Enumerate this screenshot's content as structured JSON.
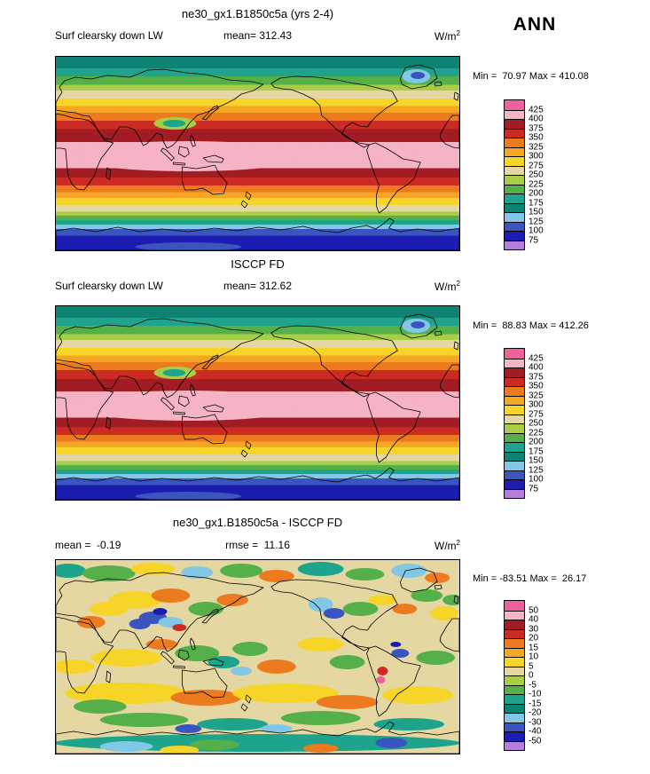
{
  "season_label": "ANN",
  "panels": [
    {
      "title": "ne30_gx1.B1850c5a (yrs 2-4)",
      "left_label": "Surf clearsky down LW",
      "center_label": "mean= 312.43",
      "units": "W/m",
      "units_exp": "2",
      "minmax": "Min =  70.97 Max = 410.08"
    },
    {
      "title": "ISCCP FD",
      "left_label": "Surf clearsky down LW",
      "center_label": "mean= 312.62",
      "units": "W/m",
      "units_exp": "2",
      "minmax": "Min =  88.83 Max = 412.26"
    },
    {
      "title": "ne30_gx1.B1850c5a - ISCCP FD",
      "left_label": "mean =  -0.19",
      "center_label": "rmse =  11.16",
      "units": "W/m",
      "units_exp": "2",
      "minmax": "Min = -83.51 Max =  26.17"
    }
  ],
  "colorbars": [
    {
      "labels": [
        "425",
        "400",
        "375",
        "350",
        "325",
        "300",
        "275",
        "250",
        "225",
        "200",
        "175",
        "150",
        "125",
        "100",
        "75"
      ],
      "colors": [
        "#EE609C",
        "#F5B3C5",
        "#A21C24",
        "#CC2B24",
        "#EC7A1F",
        "#F5A623",
        "#F7D428",
        "#E4D7A2",
        "#A8CE45",
        "#55B04A",
        "#1EA48C",
        "#0E8374",
        "#82C8E6",
        "#3A55C0",
        "#1C1CB0",
        "#B57EDC"
      ]
    },
    {
      "labels": [
        "425",
        "400",
        "375",
        "350",
        "325",
        "300",
        "275",
        "250",
        "225",
        "200",
        "175",
        "150",
        "125",
        "100",
        "75"
      ],
      "colors": [
        "#EE609C",
        "#F5B3C5",
        "#A21C24",
        "#CC2B24",
        "#EC7A1F",
        "#F5A623",
        "#F7D428",
        "#E4D7A2",
        "#A8CE45",
        "#55B04A",
        "#1EA48C",
        "#0E8374",
        "#82C8E6",
        "#3A55C0",
        "#1C1CB0",
        "#B57EDC"
      ]
    },
    {
      "labels": [
        "50",
        "40",
        "30",
        "20",
        "15",
        "10",
        "5",
        "0",
        "-5",
        "-10",
        "-15",
        "-20",
        "-30",
        "-40",
        "-50"
      ],
      "colors": [
        "#EE609C",
        "#F5B3C5",
        "#A21C24",
        "#CC2B24",
        "#EC7A1F",
        "#F5A623",
        "#F7D428",
        "#E4D7A2",
        "#A8CE45",
        "#55B04A",
        "#1EA48C",
        "#0E8374",
        "#82C8E6",
        "#3A55C0",
        "#1C1CB0",
        "#B57EDC"
      ]
    }
  ],
  "chart_data": [
    {
      "type": "heatmap",
      "subtype": "global-latlon-filled-contour-map",
      "title": "ne30_gx1.B1850c5a (yrs 2-4)",
      "variable": "Surf clearsky down LW",
      "season": "ANN",
      "units": "W/m2",
      "mean": 312.43,
      "min": 70.97,
      "max": 410.08,
      "contour_levels": [
        75,
        100,
        125,
        150,
        175,
        200,
        225,
        250,
        275,
        300,
        325,
        350,
        375,
        400,
        425
      ],
      "spatial_pattern": "zonally banded; maximum band (400-425, pale pink) along equator, widest over Indian Ocean and west Pacific; values decrease poleward through dark red, red, orange, yellow, tan, green, teal; Arctic dark teal ~150-175; Antarctica dark blue <100; local minima over Himalayas/Tibet and Greenland interior"
    },
    {
      "type": "heatmap",
      "subtype": "global-latlon-filled-contour-map",
      "title": "ISCCP FD",
      "variable": "Surf clearsky down LW",
      "season": "ANN",
      "units": "W/m2",
      "mean": 312.62,
      "min": 88.83,
      "max": 412.26,
      "contour_levels": [
        75,
        100,
        125,
        150,
        175,
        200,
        225,
        250,
        275,
        300,
        325,
        350,
        375,
        400,
        425
      ],
      "spatial_pattern": "observational reference with nearly identical zonal structure: equatorial pale-pink maximum, poleward decrease to dark blue over Antarctica, low values over Himalayas and Greenland"
    },
    {
      "type": "heatmap",
      "subtype": "global-latlon-filled-contour-difference-map",
      "title": "ne30_gx1.B1850c5a - ISCCP FD",
      "variable": "Surf clearsky down LW difference (model minus obs)",
      "season": "ANN",
      "units": "W/m2",
      "mean": -0.19,
      "rmse": 11.16,
      "min": -83.51,
      "max": 26.17,
      "contour_levels": [
        -50,
        -40,
        -30,
        -20,
        -15,
        -10,
        -5,
        0,
        5,
        10,
        15,
        20,
        30,
        40,
        50
      ],
      "spatial_pattern": "mottled small-scale differences mostly within +/-15 (tan/yellow/green); scattered negative (blue/cyan) patches over central Asia, western North America, tropical oceans and Southern Ocean; positive (yellow/orange) bands in the subtropics and southern midlatitudes; mixed teal/green/orange around Antarctica"
    }
  ]
}
